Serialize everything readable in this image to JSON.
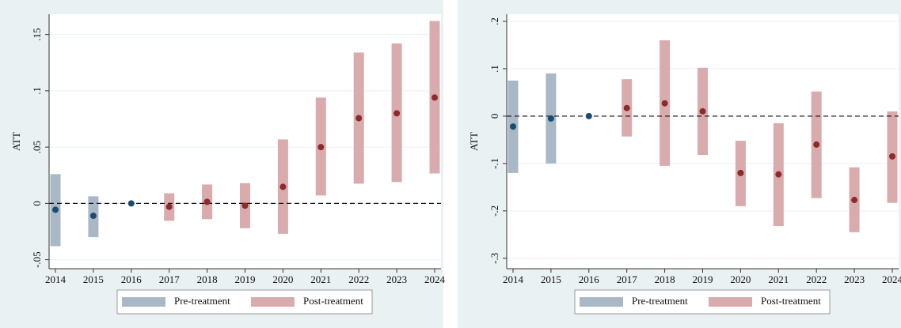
{
  "chart_data": [
    {
      "type": "errorbar",
      "ylabel": "ATT",
      "categories": [
        2014,
        2015,
        2016,
        2017,
        2018,
        2019,
        2020,
        2021,
        2022,
        2023,
        2024
      ],
      "ylim": [
        -0.058,
        0.168
      ],
      "yticks": [
        {
          "value": -0.05,
          "label": "-.05"
        },
        0,
        {
          "value": 0.05,
          "label": ".05"
        },
        {
          "value": 0.1,
          "label": ".1"
        },
        {
          "value": 0.15,
          "label": ".15"
        }
      ],
      "grid": true,
      "hline": 0,
      "legend": "bottom",
      "series": [
        {
          "name": "Pre-treatment",
          "color": "#a9b8c6",
          "marker_color": "#1b4a72",
          "values": [
            -0.0056,
            -0.011,
            0,
            null,
            null,
            null,
            null,
            null,
            null,
            null,
            null
          ],
          "low": [
            -0.038,
            -0.03,
            null,
            null,
            null,
            null,
            null,
            null,
            null,
            null,
            null
          ],
          "high": [
            0.026,
            0.0063,
            null,
            null,
            null,
            null,
            null,
            null,
            null,
            null,
            null
          ]
        },
        {
          "name": "Post-treatment",
          "color": "#d9abad",
          "marker_color": "#8e2a2a",
          "values": [
            null,
            null,
            null,
            -0.003,
            0.0014,
            -0.002,
            0.0147,
            0.05,
            0.0757,
            0.08,
            0.094
          ],
          "low": [
            null,
            null,
            null,
            -0.0154,
            -0.014,
            -0.022,
            -0.027,
            0.007,
            0.0175,
            0.019,
            0.0266
          ],
          "high": [
            null,
            null,
            null,
            0.009,
            0.0168,
            0.018,
            0.0568,
            0.094,
            0.134,
            0.142,
            0.162
          ]
        }
      ]
    },
    {
      "type": "errorbar",
      "ylabel": "ATT",
      "categories": [
        2014,
        2015,
        2016,
        2017,
        2018,
        2019,
        2020,
        2021,
        2022,
        2023,
        2024
      ],
      "ylim": [
        -0.322,
        0.215
      ],
      "yticks": [
        {
          "value": -0.3,
          "label": "-.3"
        },
        {
          "value": -0.2,
          "label": "-.2"
        },
        {
          "value": -0.1,
          "label": "-.1"
        },
        0,
        {
          "value": 0.1,
          "label": ".1"
        },
        {
          "value": 0.2,
          "label": ".2"
        }
      ],
      "grid": true,
      "hline": 0,
      "legend": "bottom",
      "series": [
        {
          "name": "Pre-treatment",
          "color": "#a9b8c6",
          "marker_color": "#1b4a72",
          "values": [
            -0.022,
            -0.005,
            0,
            null,
            null,
            null,
            null,
            null,
            null,
            null,
            null
          ],
          "low": [
            -0.12,
            -0.1,
            null,
            null,
            null,
            null,
            null,
            null,
            null,
            null,
            null
          ],
          "high": [
            0.075,
            0.09,
            null,
            null,
            null,
            null,
            null,
            null,
            null,
            null,
            null
          ]
        },
        {
          "name": "Post-treatment",
          "color": "#d9abad",
          "marker_color": "#8e2a2a",
          "values": [
            null,
            null,
            null,
            0.017,
            0.027,
            0.01,
            -0.12,
            -0.123,
            -0.06,
            -0.177,
            -0.085
          ],
          "low": [
            null,
            null,
            null,
            -0.043,
            -0.105,
            -0.082,
            -0.19,
            -0.232,
            -0.173,
            -0.245,
            -0.183
          ],
          "high": [
            null,
            null,
            null,
            0.078,
            0.16,
            0.102,
            -0.052,
            -0.015,
            0.052,
            -0.108,
            0.01
          ]
        }
      ]
    }
  ]
}
